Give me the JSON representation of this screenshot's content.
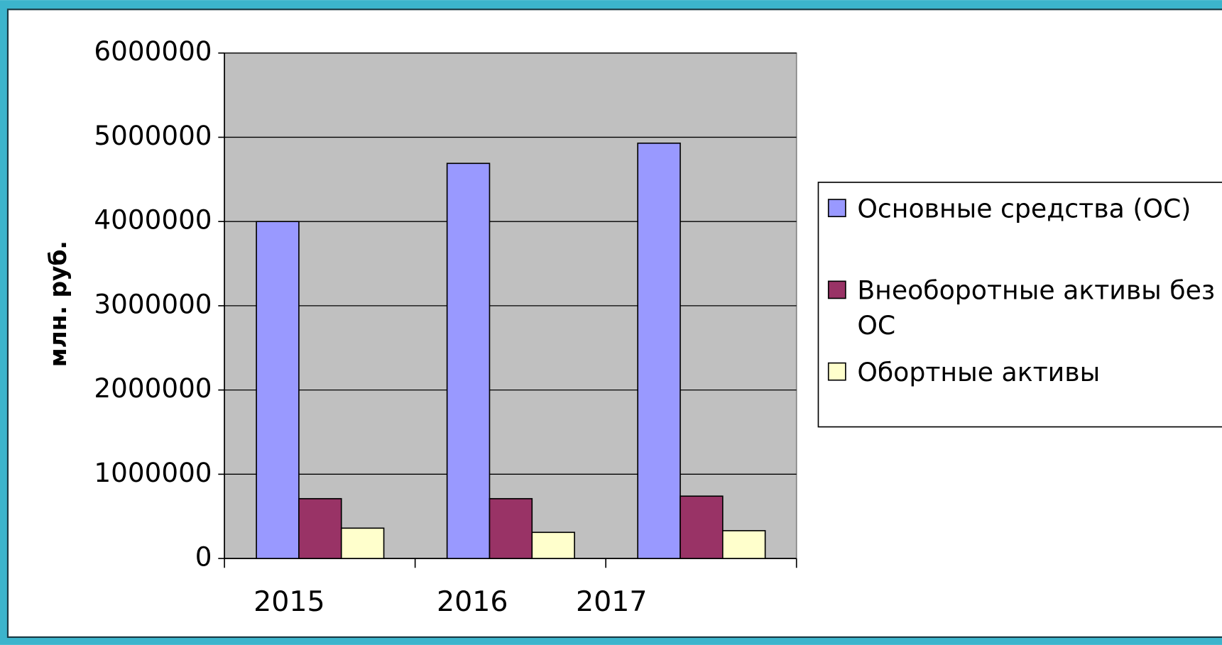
{
  "chart_data": {
    "type": "bar",
    "y_label": "млн. руб.",
    "categories": [
      "2015",
      "2016",
      "2017"
    ],
    "series": [
      {
        "name": "Основные средства (ОС)",
        "color": "#9999ff",
        "values": [
          4000000,
          4690000,
          4930000
        ]
      },
      {
        "name": "Внеоборотные активы без ОС",
        "color": "#993366",
        "values": [
          710000,
          710000,
          740000
        ]
      },
      {
        "name": "Обортные активы",
        "color": "#ffffcc",
        "values": [
          360000,
          310000,
          330000
        ]
      }
    ],
    "ylim": [
      0,
      6000000
    ],
    "yticks": [
      0,
      1000000,
      2000000,
      3000000,
      4000000,
      5000000,
      6000000
    ],
    "grid": true,
    "legend": "right"
  }
}
